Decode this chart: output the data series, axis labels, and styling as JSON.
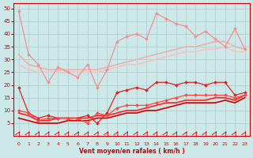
{
  "xlabel": "Vent moyen/en rafales ( km/h )",
  "xlim": [
    -0.5,
    23.5
  ],
  "ylim": [
    0,
    52
  ],
  "yticks": [
    5,
    10,
    15,
    20,
    25,
    30,
    35,
    40,
    45,
    50
  ],
  "xticks": [
    0,
    1,
    2,
    3,
    4,
    5,
    6,
    7,
    8,
    9,
    10,
    11,
    12,
    13,
    14,
    15,
    16,
    17,
    18,
    19,
    20,
    21,
    22,
    23
  ],
  "background_color": "#cce8e8",
  "grid_color": "#aacccc",
  "series": [
    {
      "x": [
        0,
        1,
        2,
        3,
        4,
        5,
        6,
        7,
        8,
        9,
        10,
        11,
        12,
        13,
        14,
        15,
        16,
        17,
        18,
        19,
        20,
        21,
        22,
        23
      ],
      "y": [
        49,
        32,
        28,
        21,
        27,
        25,
        23,
        28,
        19,
        26,
        37,
        39,
        40,
        38,
        48,
        46,
        44,
        43,
        39,
        41,
        38,
        35,
        42,
        34
      ],
      "color": "#f09090",
      "linewidth": 0.9,
      "marker": "D",
      "markersize": 2.0
    },
    {
      "x": [
        0,
        1,
        2,
        3,
        4,
        5,
        6,
        7,
        8,
        9,
        10,
        11,
        12,
        13,
        14,
        15,
        16,
        17,
        18,
        19,
        20,
        21,
        22,
        23
      ],
      "y": [
        32,
        28,
        27,
        26,
        26,
        26,
        26,
        26,
        26,
        27,
        28,
        29,
        30,
        31,
        32,
        33,
        34,
        35,
        35,
        36,
        37,
        37,
        35,
        34
      ],
      "color": "#f0b0b0",
      "linewidth": 1.2,
      "marker": null,
      "markersize": 0
    },
    {
      "x": [
        0,
        1,
        2,
        3,
        4,
        5,
        6,
        7,
        8,
        9,
        10,
        11,
        12,
        13,
        14,
        15,
        16,
        17,
        18,
        19,
        20,
        21,
        22,
        23
      ],
      "y": [
        28,
        26,
        25,
        25,
        25,
        25,
        25,
        25,
        25,
        26,
        27,
        28,
        28,
        29,
        30,
        31,
        32,
        33,
        33,
        34,
        34,
        35,
        33,
        33
      ],
      "color": "#f8c0c0",
      "linewidth": 1.2,
      "marker": null,
      "markersize": 0
    },
    {
      "x": [
        0,
        1,
        2,
        3,
        4,
        5,
        6,
        7,
        8,
        9,
        10,
        11,
        12,
        13,
        14,
        15,
        16,
        17,
        18,
        19,
        20,
        21,
        22,
        23
      ],
      "y": [
        19,
        9,
        7,
        8,
        7,
        7,
        7,
        8,
        5,
        9,
        17,
        18,
        19,
        18,
        21,
        21,
        20,
        21,
        21,
        20,
        21,
        21,
        16,
        17
      ],
      "color": "#dd2222",
      "linewidth": 0.9,
      "marker": "D",
      "markersize": 2.0
    },
    {
      "x": [
        0,
        1,
        2,
        3,
        4,
        5,
        6,
        7,
        8,
        9,
        10,
        11,
        12,
        13,
        14,
        15,
        16,
        17,
        18,
        19,
        20,
        21,
        22,
        23
      ],
      "y": [
        10,
        9,
        6,
        7,
        7,
        7,
        7,
        5,
        9,
        8,
        11,
        12,
        12,
        12,
        13,
        14,
        15,
        16,
        16,
        16,
        16,
        16,
        15,
        16
      ],
      "color": "#ff4444",
      "linewidth": 0.9,
      "marker": "D",
      "markersize": 2.0
    },
    {
      "x": [
        0,
        1,
        2,
        3,
        4,
        5,
        6,
        7,
        8,
        9,
        10,
        11,
        12,
        13,
        14,
        15,
        16,
        17,
        18,
        19,
        20,
        21,
        22,
        23
      ],
      "y": [
        9,
        8,
        6,
        6,
        7,
        7,
        7,
        7,
        8,
        8,
        9,
        10,
        10,
        11,
        12,
        13,
        13,
        14,
        14,
        14,
        15,
        15,
        14,
        16
      ],
      "color": "#ff2020",
      "linewidth": 1.2,
      "marker": null,
      "markersize": 0
    },
    {
      "x": [
        0,
        1,
        2,
        3,
        4,
        5,
        6,
        7,
        8,
        9,
        10,
        11,
        12,
        13,
        14,
        15,
        16,
        17,
        18,
        19,
        20,
        21,
        22,
        23
      ],
      "y": [
        7,
        6,
        5,
        5,
        5,
        6,
        6,
        6,
        7,
        7,
        8,
        9,
        9,
        10,
        10,
        11,
        12,
        13,
        13,
        13,
        13,
        14,
        13,
        15
      ],
      "color": "#cc0000",
      "linewidth": 1.2,
      "marker": null,
      "markersize": 0
    }
  ]
}
